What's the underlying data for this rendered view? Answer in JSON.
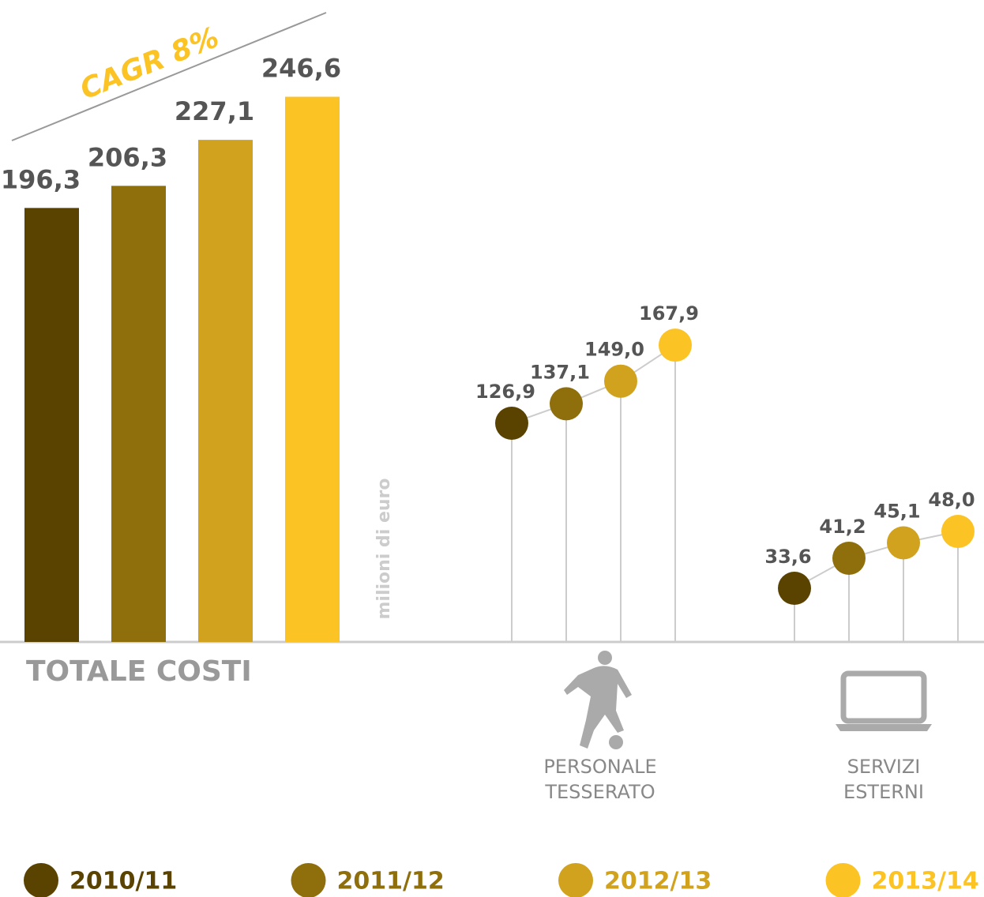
{
  "chart_data": [
    {
      "type": "bar",
      "title": "TOTALE COSTI",
      "annotation": "CAGR 8%",
      "ylabel": "milioni di euro",
      "categories": [
        "2010/11",
        "2011/12",
        "2012/13",
        "2013/14"
      ],
      "colors": [
        "#5a4200",
        "#8f6f0c",
        "#d0a21d",
        "#fcc324"
      ],
      "values": [
        196.3,
        206.3,
        227.1,
        246.6
      ],
      "value_labels": [
        "196,3",
        "206,3",
        "227,1",
        "246,6"
      ]
    },
    {
      "type": "dots",
      "title": [
        "PERSONALE",
        "TESSERATO"
      ],
      "values": [
        126.9,
        137.1,
        149.0,
        167.9
      ],
      "value_labels": [
        "126,9",
        "137,1",
        "149,0",
        "167,9"
      ]
    },
    {
      "type": "dots",
      "title": [
        "SERVIZI",
        "ESTERNI"
      ],
      "values": [
        33.6,
        41.2,
        45.1,
        48.0
      ],
      "value_labels": [
        "33,6",
        "41,2",
        "45,1",
        "48,0"
      ]
    }
  ]
}
